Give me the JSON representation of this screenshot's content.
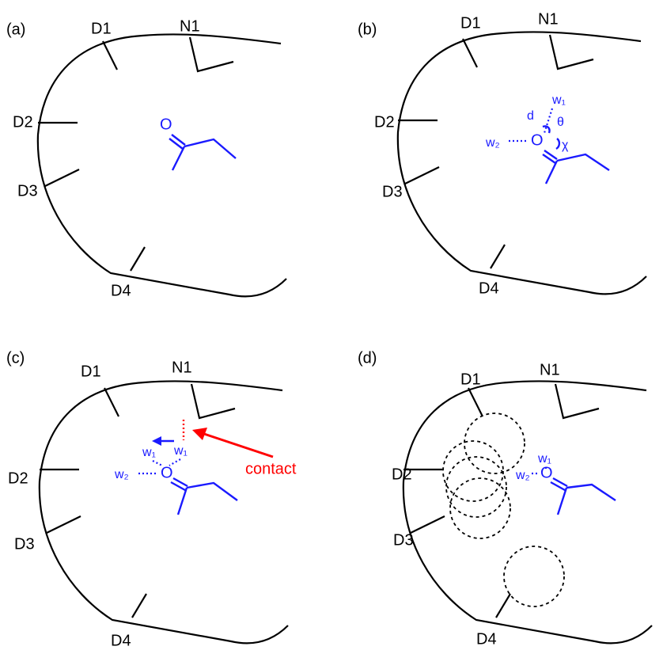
{
  "panels": [
    {
      "label": "(a)",
      "sites": [
        "D1",
        "N1",
        "D2",
        "D3",
        "D4"
      ],
      "labels": [
        "O"
      ]
    },
    {
      "label": "(b)",
      "sites": [
        "D1",
        "N1",
        "D2",
        "D3",
        "D4"
      ],
      "labels": [
        "w₁",
        "d",
        "θ",
        "w₂",
        "O",
        "χ"
      ]
    },
    {
      "label": "(c)",
      "sites": [
        "D1",
        "N1",
        "D2",
        "D3",
        "D4"
      ],
      "labels": [
        "w₁",
        "w₁",
        "w₂",
        "O",
        "contact"
      ]
    },
    {
      "label": "(d)",
      "sites": [
        "D1",
        "N1",
        "D2",
        "D3",
        "D4"
      ],
      "labels": [
        "w₁",
        "w₂",
        "O"
      ]
    }
  ]
}
